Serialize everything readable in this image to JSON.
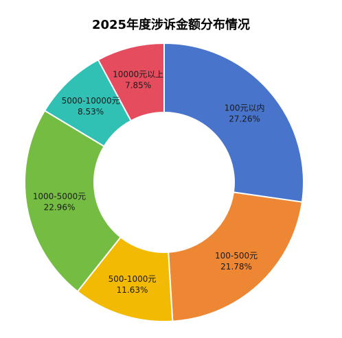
{
  "chart_data": {
    "type": "pie",
    "title": "2025年度涉诉金额分布情况",
    "categories": [
      "100元以内",
      "100-500元",
      "500-1000元",
      "1000-5000元",
      "5000-10000元",
      "10000元以上"
    ],
    "values": [
      27.26,
      21.78,
      11.63,
      22.96,
      8.53,
      7.85
    ],
    "value_labels": [
      "27.26%",
      "21.78%",
      "11.63%",
      "22.96%",
      "8.53%",
      "7.85%"
    ],
    "colors": [
      "#4874CB",
      "#EE8733",
      "#F2BA02",
      "#75BC42",
      "#30C0B4",
      "#E54C5E"
    ],
    "donut": true,
    "start": "top",
    "direction": "clockwise"
  }
}
